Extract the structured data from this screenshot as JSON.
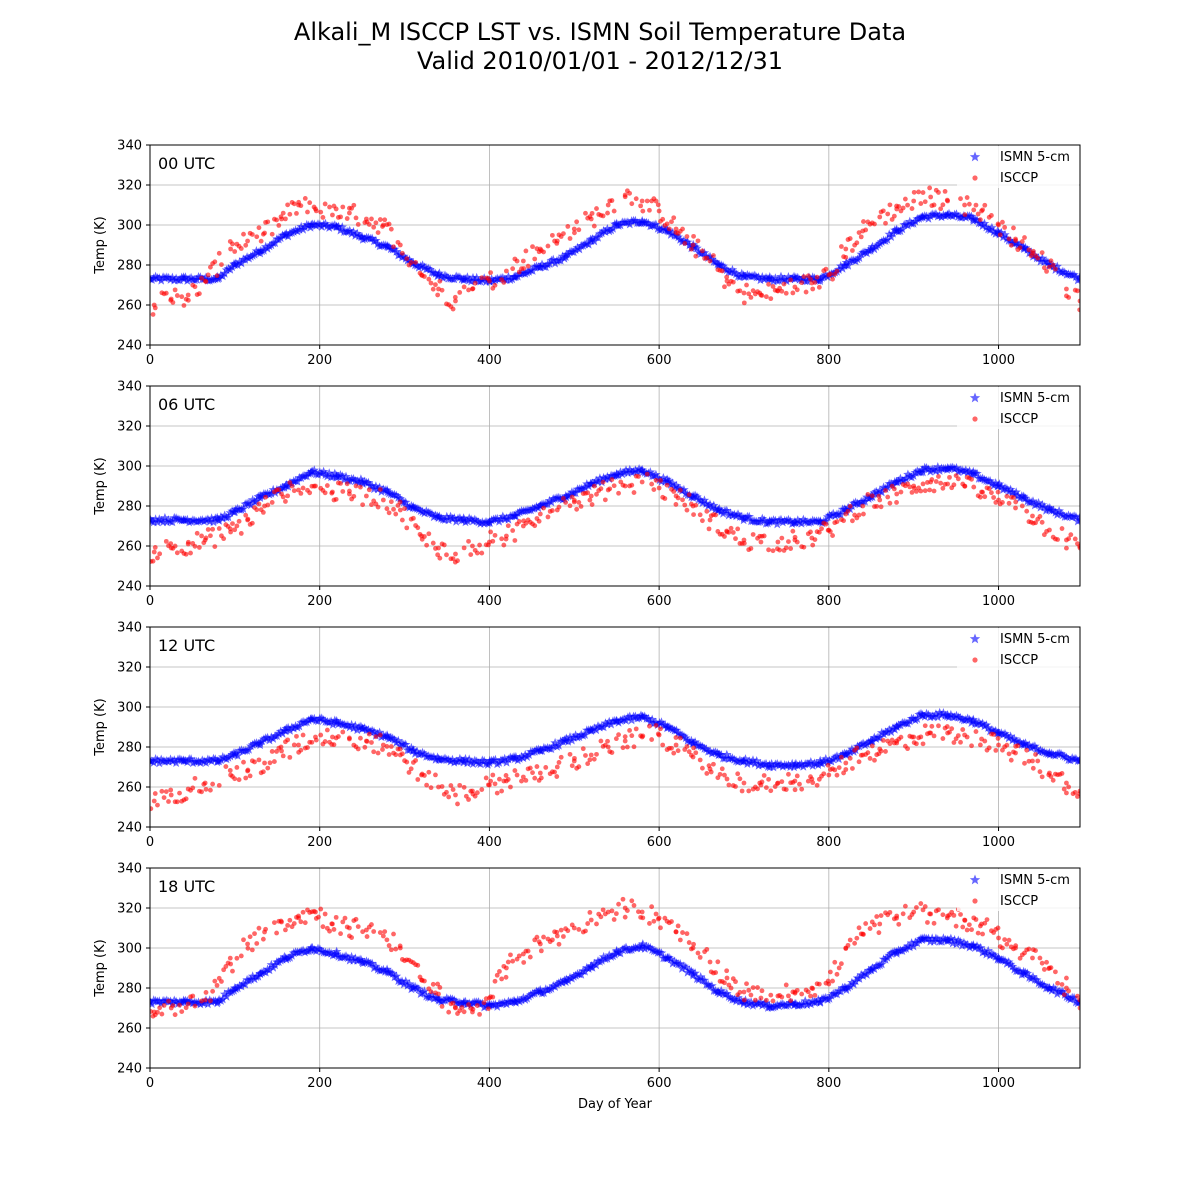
{
  "figure": {
    "title": "Alkali_M ISCCP LST vs. ISMN Soil Temperature Data",
    "subtitle": "Valid 2010/01/01 - 2012/12/31"
  },
  "colors": {
    "ismn": "#0000ff",
    "isccp": "#ff0000",
    "grid": "#b0b0b0"
  },
  "chart_data": [
    {
      "type": "scatter",
      "panel_label": "00 UTC",
      "xlabel": "",
      "ylabel": "Temp (K)",
      "xlim": [
        0,
        1096
      ],
      "ylim": [
        240,
        340
      ],
      "xticks": [
        0,
        200,
        400,
        600,
        800,
        1000
      ],
      "yticks": [
        240,
        260,
        280,
        300,
        320,
        340
      ],
      "grid": true,
      "legend": "top-right",
      "series": [
        {
          "name": "ISMN 5-cm",
          "marker": "star",
          "x": [
            0,
            40,
            80,
            100,
            130,
            160,
            190,
            220,
            250,
            280,
            310,
            340,
            370,
            400,
            430,
            460,
            490,
            520,
            550,
            580,
            610,
            640,
            670,
            700,
            730,
            760,
            790,
            820,
            850,
            880,
            910,
            940,
            970,
            1000,
            1030,
            1060,
            1096
          ],
          "y": [
            273,
            273,
            273,
            280,
            287,
            295,
            300,
            299,
            294,
            289,
            281,
            275,
            273,
            272,
            274,
            279,
            284,
            292,
            300,
            302,
            297,
            289,
            280,
            274,
            273,
            273,
            273,
            280,
            288,
            297,
            304,
            305,
            303,
            296,
            288,
            280,
            273
          ]
        },
        {
          "name": "ISCCP",
          "marker": "circle",
          "x": [
            5,
            25,
            45,
            65,
            95,
            115,
            135,
            155,
            175,
            195,
            215,
            235,
            255,
            275,
            295,
            320,
            340,
            360,
            380,
            400,
            420,
            440,
            460,
            480,
            500,
            520,
            540,
            560,
            580,
            600,
            620,
            640,
            660,
            680,
            700,
            720,
            740,
            760,
            780,
            800,
            820,
            840,
            860,
            880,
            900,
            920,
            940,
            960,
            980,
            1000,
            1020,
            1040,
            1060,
            1080,
            1096
          ],
          "y": [
            260,
            263,
            265,
            272,
            288,
            292,
            296,
            303,
            310,
            308,
            305,
            306,
            303,
            300,
            290,
            275,
            268,
            262,
            268,
            272,
            277,
            282,
            288,
            292,
            298,
            303,
            310,
            315,
            312,
            307,
            298,
            290,
            282,
            272,
            266,
            265,
            267,
            269,
            271,
            275,
            288,
            297,
            304,
            308,
            312,
            314,
            312,
            310,
            307,
            300,
            293,
            286,
            279,
            268,
            262
          ]
        }
      ]
    },
    {
      "type": "scatter",
      "panel_label": "06 UTC",
      "xlabel": "",
      "ylabel": "Temp (K)",
      "xlim": [
        0,
        1096
      ],
      "ylim": [
        240,
        340
      ],
      "xticks": [
        0,
        200,
        400,
        600,
        800,
        1000
      ],
      "yticks": [
        240,
        260,
        280,
        300,
        320,
        340
      ],
      "grid": true,
      "legend": "top-right",
      "series": [
        {
          "name": "ISMN 5-cm",
          "marker": "star",
          "x": [
            0,
            40,
            80,
            100,
            130,
            160,
            190,
            220,
            250,
            280,
            310,
            340,
            370,
            400,
            430,
            460,
            490,
            520,
            550,
            580,
            610,
            640,
            670,
            700,
            730,
            760,
            790,
            820,
            850,
            880,
            910,
            940,
            970,
            1000,
            1030,
            1060,
            1096
          ],
          "y": [
            273,
            273,
            273,
            277,
            284,
            290,
            297,
            295,
            292,
            287,
            279,
            274,
            273,
            272,
            275,
            280,
            285,
            291,
            296,
            298,
            292,
            285,
            278,
            274,
            272,
            272,
            272,
            278,
            285,
            292,
            298,
            299,
            296,
            290,
            284,
            278,
            273
          ]
        },
        {
          "name": "ISCCP",
          "marker": "circle",
          "x": [
            5,
            25,
            45,
            65,
            95,
            115,
            135,
            155,
            175,
            195,
            215,
            235,
            255,
            275,
            295,
            320,
            340,
            360,
            380,
            400,
            420,
            440,
            460,
            480,
            500,
            520,
            540,
            560,
            580,
            600,
            620,
            640,
            660,
            680,
            700,
            720,
            740,
            760,
            780,
            800,
            820,
            840,
            860,
            880,
            900,
            920,
            940,
            960,
            980,
            1000,
            1020,
            1040,
            1060,
            1080,
            1096
          ],
          "y": [
            257,
            259,
            261,
            263,
            267,
            273,
            280,
            286,
            288,
            290,
            287,
            286,
            285,
            283,
            278,
            265,
            259,
            256,
            260,
            262,
            265,
            270,
            276,
            278,
            282,
            285,
            288,
            290,
            292,
            289,
            285,
            280,
            273,
            267,
            263,
            262,
            262,
            263,
            264,
            268,
            276,
            280,
            283,
            286,
            290,
            292,
            291,
            290,
            287,
            283,
            279,
            275,
            268,
            263,
            259
          ]
        }
      ]
    },
    {
      "type": "scatter",
      "panel_label": "12 UTC",
      "xlabel": "",
      "ylabel": "Temp (K)",
      "xlim": [
        0,
        1096
      ],
      "ylim": [
        240,
        340
      ],
      "xticks": [
        0,
        200,
        400,
        600,
        800,
        1000
      ],
      "yticks": [
        240,
        260,
        280,
        300,
        320,
        340
      ],
      "grid": true,
      "legend": "top-right",
      "series": [
        {
          "name": "ISMN 5-cm",
          "marker": "star",
          "x": [
            0,
            40,
            80,
            100,
            130,
            160,
            190,
            220,
            250,
            280,
            310,
            340,
            370,
            400,
            430,
            460,
            490,
            520,
            550,
            580,
            610,
            640,
            670,
            700,
            730,
            760,
            790,
            820,
            850,
            880,
            910,
            940,
            970,
            1000,
            1030,
            1060,
            1096
          ],
          "y": [
            273,
            273,
            273,
            276,
            282,
            288,
            294,
            292,
            289,
            285,
            278,
            274,
            273,
            272,
            274,
            278,
            283,
            288,
            293,
            295,
            290,
            282,
            276,
            273,
            271,
            271,
            272,
            276,
            283,
            290,
            296,
            296,
            293,
            287,
            281,
            277,
            273
          ]
        },
        {
          "name": "ISCCP",
          "marker": "circle",
          "x": [
            5,
            25,
            45,
            65,
            95,
            115,
            135,
            155,
            175,
            195,
            215,
            235,
            255,
            275,
            295,
            320,
            340,
            360,
            380,
            400,
            420,
            440,
            460,
            480,
            500,
            520,
            540,
            560,
            580,
            600,
            620,
            640,
            660,
            680,
            700,
            720,
            740,
            760,
            780,
            800,
            820,
            840,
            860,
            880,
            900,
            920,
            940,
            960,
            980,
            1000,
            1020,
            1040,
            1060,
            1080,
            1096
          ],
          "y": [
            253,
            256,
            259,
            262,
            266,
            268,
            272,
            278,
            281,
            285,
            285,
            284,
            283,
            281,
            276,
            266,
            260,
            256,
            258,
            261,
            263,
            265,
            267,
            270,
            273,
            276,
            280,
            283,
            285,
            286,
            281,
            275,
            269,
            264,
            262,
            261,
            262,
            263,
            264,
            266,
            272,
            276,
            279,
            282,
            285,
            287,
            287,
            286,
            284,
            281,
            277,
            273,
            267,
            262,
            258
          ]
        }
      ]
    },
    {
      "type": "scatter",
      "panel_label": "18 UTC",
      "xlabel": "Day of Year",
      "ylabel": "Temp (K)",
      "xlim": [
        0,
        1096
      ],
      "ylim": [
        240,
        340
      ],
      "xticks": [
        0,
        200,
        400,
        600,
        800,
        1000
      ],
      "yticks": [
        240,
        260,
        280,
        300,
        320,
        340
      ],
      "grid": true,
      "legend": "top-right",
      "series": [
        {
          "name": "ISMN 5-cm",
          "marker": "star",
          "x": [
            0,
            40,
            80,
            100,
            130,
            160,
            190,
            220,
            250,
            280,
            310,
            340,
            370,
            400,
            430,
            460,
            490,
            520,
            550,
            580,
            610,
            640,
            670,
            700,
            730,
            760,
            790,
            820,
            850,
            880,
            910,
            940,
            970,
            1000,
            1030,
            1060,
            1096
          ],
          "y": [
            273,
            273,
            273,
            280,
            287,
            295,
            300,
            297,
            293,
            288,
            280,
            274,
            273,
            271,
            273,
            278,
            283,
            291,
            298,
            301,
            295,
            287,
            278,
            273,
            271,
            272,
            273,
            280,
            289,
            298,
            304,
            304,
            301,
            295,
            287,
            280,
            273
          ]
        },
        {
          "name": "ISCCP",
          "marker": "circle",
          "x": [
            5,
            25,
            45,
            65,
            95,
            115,
            135,
            155,
            175,
            195,
            215,
            235,
            255,
            275,
            295,
            320,
            340,
            360,
            380,
            400,
            420,
            440,
            460,
            480,
            500,
            520,
            540,
            560,
            580,
            600,
            620,
            640,
            660,
            680,
            700,
            720,
            740,
            760,
            780,
            800,
            820,
            840,
            860,
            880,
            900,
            920,
            940,
            960,
            980,
            1000,
            1020,
            1040,
            1060,
            1080,
            1096
          ],
          "y": [
            268,
            270,
            272,
            274,
            292,
            302,
            308,
            313,
            316,
            318,
            312,
            310,
            309,
            306,
            300,
            284,
            277,
            270,
            268,
            275,
            290,
            297,
            302,
            306,
            310,
            314,
            318,
            320,
            318,
            315,
            308,
            300,
            293,
            285,
            278,
            275,
            276,
            278,
            280,
            282,
            300,
            307,
            312,
            316,
            318,
            317,
            316,
            314,
            312,
            305,
            300,
            295,
            290,
            280,
            270
          ]
        }
      ]
    }
  ]
}
